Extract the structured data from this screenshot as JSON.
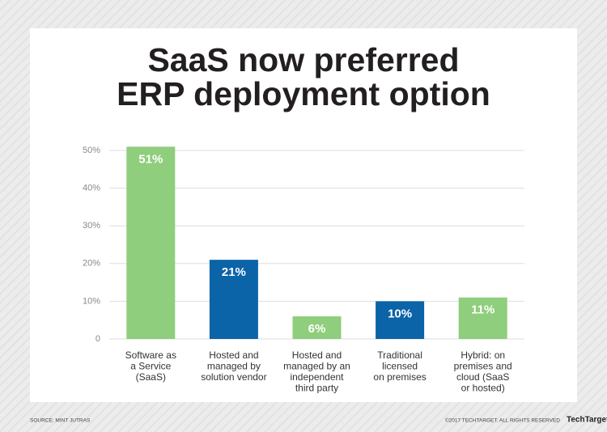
{
  "chart_data": {
    "type": "bar",
    "title": [
      "SaaS now preferred",
      "ERP deployment option"
    ],
    "categories": [
      "Software as\na Service\n(SaaS)",
      "Hosted and\nmanaged by\nsolution vendor",
      "Hosted and\nmanaged by an\nindependent\nthird party",
      "Traditional\nlicensed\non premises",
      "Hybrid: on\npremises and\ncloud (SaaS\nor hosted)"
    ],
    "values": [
      51,
      21,
      6,
      10,
      11
    ],
    "value_labels": [
      "51%",
      "21%",
      "6%",
      "10%",
      "11%"
    ],
    "colors": [
      "#8fce7c",
      "#0b63a8",
      "#8fce7c",
      "#0b63a8",
      "#8fce7c"
    ],
    "ylim": [
      0,
      50
    ],
    "yticks": [
      0,
      {
        "value": 10,
        "label": "10%"
      },
      {
        "value": 20,
        "label": "20%"
      },
      {
        "value": 30,
        "label": "30%"
      },
      {
        "value": 40,
        "label": "40%"
      },
      {
        "value": 50,
        "label": "50%"
      }
    ],
    "grid": true,
    "source": "SOURCE: MINT JUTRAS",
    "copyright": "©2017 TECHTARGET. ALL RIGHTS RESERVED",
    "brand": "TechTarget"
  }
}
